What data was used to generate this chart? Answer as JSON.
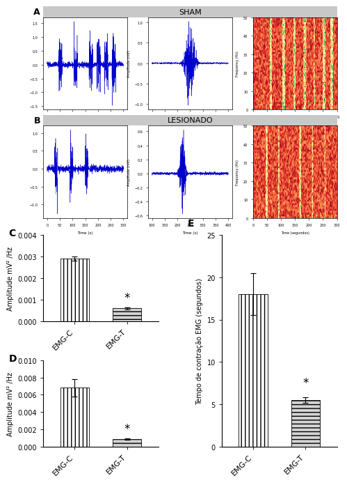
{
  "panel_A_label": "A",
  "panel_B_label": "B",
  "sham_title": "SHAM",
  "lesionado_title": "LESIONADO",
  "panel_C_label": "C",
  "panel_D_label": "D",
  "panel_E_label": "E",
  "C_values": [
    0.0029,
    0.0006
  ],
  "C_errors": [
    0.0001,
    5e-05
  ],
  "C_categories": [
    "EMG-C",
    "EMG-T"
  ],
  "C_ylabel": "Amplitude mV² /Hz",
  "C_ylim": [
    0,
    0.004
  ],
  "C_yticks": [
    0.0,
    0.001,
    0.002,
    0.003,
    0.004
  ],
  "D_values": [
    0.0068,
    0.0009
  ],
  "D_errors": [
    0.001,
    8e-05
  ],
  "D_categories": [
    "EMG-C",
    "EMG-T"
  ],
  "D_ylabel": "Amplitude mV² /Hz",
  "D_ylim": [
    0,
    0.01
  ],
  "D_yticks": [
    0.0,
    0.002,
    0.004,
    0.006,
    0.008,
    0.01
  ],
  "E_values": [
    18.0,
    5.5
  ],
  "E_errors": [
    2.5,
    0.3
  ],
  "E_categories": [
    "EMG-C",
    "EMG-T"
  ],
  "E_ylabel": "Tempo de contração EMG (segundos)",
  "E_ylim": [
    0,
    25
  ],
  "E_yticks": [
    0,
    5,
    10,
    15,
    20,
    25
  ],
  "bar_color_C": "#ffffff",
  "bar_color_T": "#d3d3d3",
  "bar_hatch_C": "|||",
  "bar_hatch_T": "---",
  "header_bg": "#c8c8c8",
  "header_text_color": "#000000",
  "background_color": "#ffffff",
  "signal_color": "#0000cc",
  "star_fontsize": 12,
  "label_fontsize": 8,
  "tick_fontsize": 7,
  "ylabel_fontsize": 7
}
